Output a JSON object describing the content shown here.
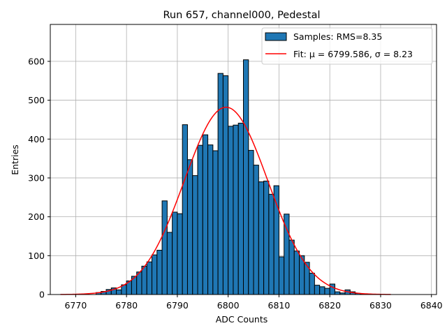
{
  "chart_data": {
    "type": "bar",
    "title": "Run 657, channel000, Pedestal",
    "xlabel": "ADC Counts",
    "ylabel": "Entries",
    "xlim": [
      6765,
      6841
    ],
    "ylim": [
      0,
      695
    ],
    "xticks": [
      6770,
      6780,
      6790,
      6800,
      6810,
      6820,
      6830,
      6840
    ],
    "yticks": [
      0,
      100,
      200,
      300,
      400,
      500,
      600
    ],
    "grid": true,
    "legend_position": "top-right",
    "legend": {
      "hist_label": "Samples: RMS=8.35",
      "fit_label": "Fit: μ = 6799.586, σ = 8.23"
    },
    "histogram": {
      "name": "Samples: RMS=8.35",
      "bin_width": 1,
      "bin_starts": [
        6774,
        6775,
        6776,
        6777,
        6778,
        6779,
        6780,
        6781,
        6782,
        6783,
        6784,
        6785,
        6786,
        6787,
        6788,
        6789,
        6790,
        6791,
        6792,
        6793,
        6794,
        6795,
        6796,
        6797,
        6798,
        6799,
        6800,
        6801,
        6802,
        6803,
        6804,
        6805,
        6806,
        6807,
        6808,
        6809,
        6810,
        6811,
        6812,
        6813,
        6814,
        6815,
        6816,
        6817,
        6818,
        6819,
        6820,
        6821,
        6822,
        6823,
        6824,
        6825,
        6826,
        6827
      ],
      "counts": [
        5,
        8,
        13,
        17,
        12,
        25,
        35,
        47,
        58,
        73,
        84,
        102,
        114,
        241,
        160,
        212,
        208,
        437,
        347,
        306,
        384,
        411,
        385,
        370,
        569,
        563,
        433,
        436,
        441,
        604,
        371,
        333,
        290,
        292,
        258,
        280,
        97,
        207,
        140,
        112,
        100,
        83,
        55,
        24,
        20,
        16,
        27,
        7,
        4,
        12,
        7,
        3,
        1,
        1
      ],
      "color": "#1f77b4",
      "edgecolor": "#000000"
    },
    "fit": {
      "name": "Fit: μ = 6799.586, σ = 8.23",
      "mu": 6799.586,
      "sigma": 8.23,
      "amplitude": 482,
      "x_range": [
        6767,
        6832
      ],
      "color": "#ff0000"
    }
  }
}
